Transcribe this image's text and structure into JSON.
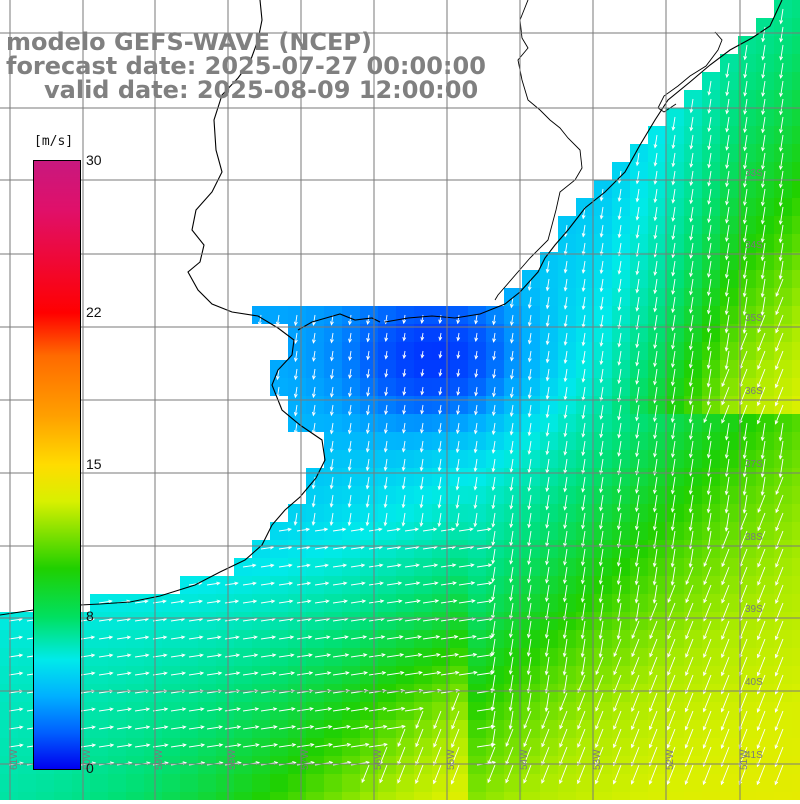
{
  "title": {
    "line1": "modelo GEFS-WAVE (NCEP)",
    "line2": "forecast date: 2025-07-27 00:00:00",
    "line3": "valid date: 2025-08-09 12:00:00"
  },
  "colorbar": {
    "unit_label": "[m/s]",
    "ticks": [
      "30",
      "22",
      "15",
      "8",
      "0"
    ],
    "tick_values": [
      30,
      22,
      15,
      8,
      0
    ],
    "colors": [
      "#c8187e",
      "#ff0000",
      "#ff8000",
      "#ffdc00",
      "#20d000",
      "#00eaea",
      "#0060ff",
      "#0000ee"
    ]
  },
  "axes": {
    "lat_labels": [
      "33S",
      "34S",
      "35S",
      "36S",
      "37S",
      "38S",
      "39S",
      "40S",
      "41S"
    ],
    "lon_labels": [
      "61W",
      "60W",
      "59W",
      "58W",
      "57W",
      "56W",
      "55W",
      "54W",
      "53W",
      "52W",
      "51W"
    ],
    "grid": true
  },
  "map": {
    "variable": "wind speed and direction",
    "land_color": "#ffffff",
    "coastline_color": "#000000",
    "grid_color": "#7a7a7a",
    "arrow_color": "#ffffff"
  }
}
